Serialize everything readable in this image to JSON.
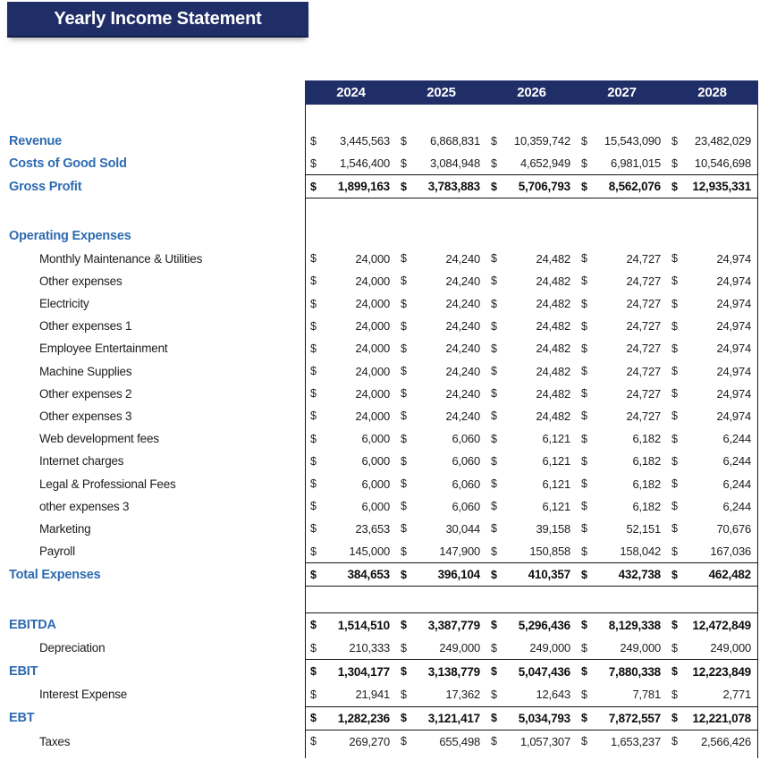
{
  "title": "Yearly Income Statement",
  "currency_symbol": "$",
  "colors": {
    "navy_header": "#1f2e66",
    "section_label_blue": "#2e6bb0",
    "body_text": "#1c1c1c"
  },
  "years": [
    "2024",
    "2025",
    "2026",
    "2027",
    "2028"
  ],
  "rows": [
    {
      "kind": "top-spacer"
    },
    {
      "label": "Revenue",
      "kind": "section",
      "border": "none",
      "values": [
        "3,445,563",
        "6,868,831",
        "10,359,742",
        "15,543,090",
        "23,482,029"
      ]
    },
    {
      "label": "Costs of Good Sold",
      "kind": "section",
      "border": "none",
      "values": [
        "1,546,400",
        "3,084,948",
        "4,652,949",
        "6,981,015",
        "10,546,698"
      ]
    },
    {
      "label": "Gross Profit",
      "kind": "total",
      "border": "top-bottom",
      "values": [
        "1,899,163",
        "3,783,883",
        "5,706,793",
        "8,562,076",
        "12,935,331"
      ]
    },
    {
      "kind": "spacer"
    },
    {
      "label": "Operating Expenses",
      "kind": "section",
      "border": "none",
      "values": null
    },
    {
      "label": "Monthly Maintenance & Utilities",
      "kind": "item",
      "border": "none",
      "values": [
        "24,000",
        "24,240",
        "24,482",
        "24,727",
        "24,974"
      ]
    },
    {
      "label": "Other expenses",
      "kind": "item",
      "border": "none",
      "values": [
        "24,000",
        "24,240",
        "24,482",
        "24,727",
        "24,974"
      ]
    },
    {
      "label": "Electricity",
      "kind": "item",
      "border": "none",
      "values": [
        "24,000",
        "24,240",
        "24,482",
        "24,727",
        "24,974"
      ]
    },
    {
      "label": "Other expenses 1",
      "kind": "item",
      "border": "none",
      "values": [
        "24,000",
        "24,240",
        "24,482",
        "24,727",
        "24,974"
      ]
    },
    {
      "label": "Employee Entertainment",
      "kind": "item",
      "border": "none",
      "values": [
        "24,000",
        "24,240",
        "24,482",
        "24,727",
        "24,974"
      ]
    },
    {
      "label": "Machine Supplies",
      "kind": "item",
      "border": "none",
      "values": [
        "24,000",
        "24,240",
        "24,482",
        "24,727",
        "24,974"
      ]
    },
    {
      "label": "Other expenses 2",
      "kind": "item",
      "border": "none",
      "values": [
        "24,000",
        "24,240",
        "24,482",
        "24,727",
        "24,974"
      ]
    },
    {
      "label": "Other expenses 3",
      "kind": "item",
      "border": "none",
      "values": [
        "24,000",
        "24,240",
        "24,482",
        "24,727",
        "24,974"
      ]
    },
    {
      "label": "Web development fees",
      "kind": "item",
      "border": "none",
      "values": [
        "6,000",
        "6,060",
        "6,121",
        "6,182",
        "6,244"
      ]
    },
    {
      "label": "Internet charges",
      "kind": "item",
      "border": "none",
      "values": [
        "6,000",
        "6,060",
        "6,121",
        "6,182",
        "6,244"
      ]
    },
    {
      "label": "Legal & Professional Fees",
      "kind": "item",
      "border": "none",
      "values": [
        "6,000",
        "6,060",
        "6,121",
        "6,182",
        "6,244"
      ]
    },
    {
      "label": "other expenses 3",
      "kind": "item",
      "border": "none",
      "values": [
        "6,000",
        "6,060",
        "6,121",
        "6,182",
        "6,244"
      ]
    },
    {
      "label": "Marketing",
      "kind": "item",
      "border": "none",
      "values": [
        "23,653",
        "30,044",
        "39,158",
        "52,151",
        "70,676"
      ]
    },
    {
      "label": "Payroll",
      "kind": "item",
      "border": "none",
      "values": [
        "145,000",
        "147,900",
        "150,858",
        "158,042",
        "167,036"
      ]
    },
    {
      "label": "Total Expenses",
      "kind": "total",
      "border": "top-bottom",
      "values": [
        "384,653",
        "396,104",
        "410,357",
        "432,738",
        "462,482"
      ]
    },
    {
      "kind": "spacer"
    },
    {
      "label": "EBITDA",
      "kind": "total",
      "border": "top",
      "values": [
        "1,514,510",
        "3,387,779",
        "5,296,436",
        "8,129,338",
        "12,472,849"
      ]
    },
    {
      "label": "Depreciation",
      "kind": "item",
      "border": "none",
      "values": [
        "210,333",
        "249,000",
        "249,000",
        "249,000",
        "249,000"
      ]
    },
    {
      "label": "EBIT",
      "kind": "total",
      "border": "top",
      "values": [
        "1,304,177",
        "3,138,779",
        "5,047,436",
        "7,880,338",
        "12,223,849"
      ]
    },
    {
      "label": "Interest Expense",
      "kind": "item",
      "border": "none",
      "values": [
        "21,941",
        "17,362",
        "12,643",
        "7,781",
        "2,771"
      ]
    },
    {
      "label": "EBT",
      "kind": "total",
      "border": "top-bottom",
      "values": [
        "1,282,236",
        "3,121,417",
        "5,034,793",
        "7,872,557",
        "12,221,078"
      ]
    },
    {
      "label": "Taxes",
      "kind": "item",
      "border": "none",
      "values": [
        "269,270",
        "655,498",
        "1,057,307",
        "1,653,237",
        "2,566,426"
      ]
    },
    {
      "kind": "end-spacer"
    }
  ]
}
